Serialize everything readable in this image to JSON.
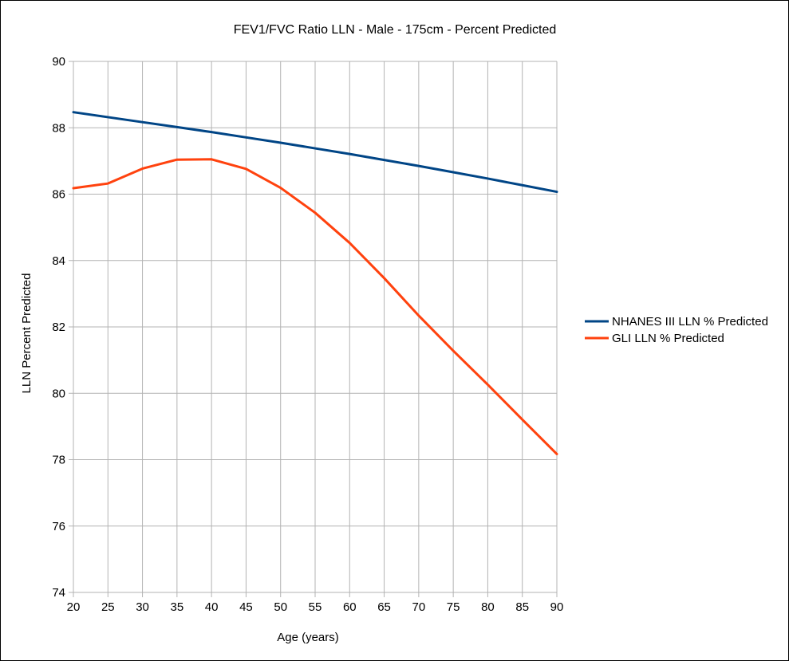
{
  "chart_data": {
    "type": "line",
    "title": "FEV1/FVC Ratio LLN - Male - 175cm - Percent Predicted",
    "xlabel": "Age (years)",
    "ylabel": "LLN Percent Predicted",
    "x": [
      20,
      25,
      30,
      35,
      40,
      45,
      50,
      55,
      60,
      65,
      70,
      75,
      80,
      85,
      90
    ],
    "xlim": [
      20,
      90
    ],
    "ylim": [
      74,
      90
    ],
    "yticks": [
      74,
      76,
      78,
      80,
      82,
      84,
      86,
      88,
      90
    ],
    "grid": true,
    "legend_position": "right",
    "series": [
      {
        "name": "NHANES III LLN % Predicted",
        "color": "#004586",
        "values": [
          88.47,
          88.32,
          88.17,
          88.02,
          87.87,
          87.71,
          87.55,
          87.38,
          87.21,
          87.03,
          86.85,
          86.66,
          86.47,
          86.27,
          86.07
        ]
      },
      {
        "name": "GLI LLN % Predicted",
        "color": "#ff420e",
        "values": [
          86.18,
          86.32,
          86.77,
          87.04,
          87.05,
          86.76,
          86.19,
          85.44,
          84.53,
          83.47,
          82.34,
          81.28,
          80.26,
          79.21,
          78.17
        ]
      }
    ]
  }
}
